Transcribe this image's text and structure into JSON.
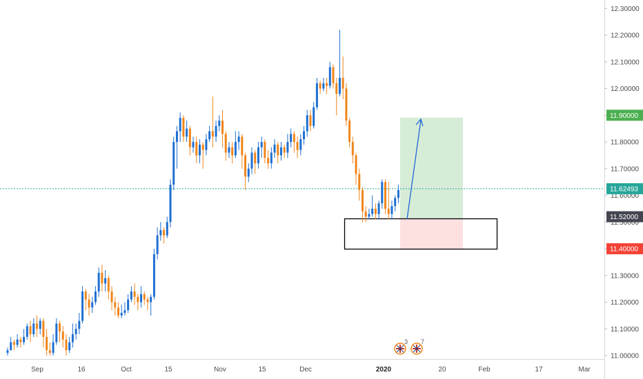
{
  "chart_data": {
    "type": "candlestick",
    "x_ticks": [
      "Sep",
      "16",
      "Oct",
      "15",
      "Nov",
      "15",
      "Dec",
      "2020",
      "20",
      "Feb",
      "17",
      "Mar"
    ],
    "y_ticks": [
      "12.30000",
      "12.20000",
      "12.10000",
      "12.00000",
      "11.90000",
      "11.80000",
      "11.70000",
      "11.60000",
      "11.50000",
      "11.40000",
      "11.30000",
      "11.20000",
      "11.10000",
      "11.00000"
    ],
    "ylim": [
      11.0,
      12.3
    ],
    "current_price": {
      "value": 11.62493,
      "label": "11.62493",
      "color": "#26a69a"
    },
    "price_badges": [
      {
        "label": "11.90000",
        "value": 11.9,
        "color": "#4caf50"
      },
      {
        "label": "11.52000",
        "value": 11.52,
        "color": "#434651"
      },
      {
        "label": "11.40000",
        "value": 11.4,
        "color": "#f44336"
      }
    ],
    "colors": {
      "up": "#1e6fd1",
      "down": "#f0851a",
      "profit_zone": "#d6ecd7",
      "loss_zone": "#fde1e1",
      "arrow": "#2166d6",
      "grid": "#ffffff"
    },
    "candles": [
      [
        11.01,
        11.02,
        11.0,
        11.03
      ],
      [
        11.02,
        11.05,
        11.02,
        11.07
      ],
      [
        11.05,
        11.04,
        11.02,
        11.06
      ],
      [
        11.04,
        11.06,
        11.03,
        11.08
      ],
      [
        11.06,
        11.05,
        11.03,
        11.07
      ],
      [
        11.05,
        11.07,
        11.04,
        11.1
      ],
      [
        11.07,
        11.11,
        11.06,
        11.12
      ],
      [
        11.11,
        11.08,
        11.05,
        11.13
      ],
      [
        11.08,
        11.12,
        11.07,
        11.14
      ],
      [
        11.12,
        11.1,
        11.07,
        11.15
      ],
      [
        11.1,
        11.13,
        11.08,
        11.14
      ],
      [
        11.13,
        11.07,
        11.03,
        11.14
      ],
      [
        11.07,
        11.02,
        11.0,
        11.1
      ],
      [
        11.02,
        11.01,
        11.0,
        11.05
      ],
      [
        11.01,
        11.05,
        11.0,
        11.08
      ],
      [
        11.05,
        11.12,
        11.04,
        11.14
      ],
      [
        11.12,
        11.09,
        11.05,
        11.13
      ],
      [
        11.09,
        11.06,
        11.03,
        11.11
      ],
      [
        11.06,
        11.02,
        11.0,
        11.08
      ],
      [
        11.02,
        11.05,
        11.01,
        11.07
      ],
      [
        11.05,
        11.08,
        11.03,
        11.12
      ],
      [
        11.08,
        11.1,
        11.06,
        11.12
      ],
      [
        11.1,
        11.13,
        11.08,
        11.16
      ],
      [
        11.13,
        11.24,
        11.12,
        11.26
      ],
      [
        11.24,
        11.21,
        11.17,
        11.25
      ],
      [
        11.21,
        11.18,
        11.15,
        11.23
      ],
      [
        11.18,
        11.2,
        11.16,
        11.22
      ],
      [
        11.2,
        11.24,
        11.19,
        11.26
      ],
      [
        11.24,
        11.31,
        11.22,
        11.33
      ],
      [
        11.31,
        11.27,
        11.24,
        11.34
      ],
      [
        11.27,
        11.29,
        11.24,
        11.32
      ],
      [
        11.29,
        11.24,
        11.21,
        11.3
      ],
      [
        11.24,
        11.2,
        11.17,
        11.26
      ],
      [
        11.2,
        11.18,
        11.15,
        11.22
      ],
      [
        11.18,
        11.15,
        11.14,
        11.2
      ],
      [
        11.15,
        11.16,
        11.14,
        11.19
      ],
      [
        11.16,
        11.17,
        11.15,
        11.2
      ],
      [
        11.17,
        11.21,
        11.16,
        11.23
      ],
      [
        11.21,
        11.24,
        11.2,
        11.26
      ],
      [
        11.24,
        11.22,
        11.19,
        11.27
      ],
      [
        11.22,
        11.2,
        11.17,
        11.23
      ],
      [
        11.2,
        11.23,
        11.18,
        11.26
      ],
      [
        11.23,
        11.21,
        11.19,
        11.24
      ],
      [
        11.21,
        11.2,
        11.17,
        11.22
      ],
      [
        11.2,
        11.22,
        11.15,
        11.23
      ],
      [
        11.22,
        11.38,
        11.21,
        11.4
      ],
      [
        11.38,
        11.45,
        11.36,
        11.48
      ],
      [
        11.45,
        11.47,
        11.43,
        11.5
      ],
      [
        11.47,
        11.45,
        11.42,
        11.48
      ],
      [
        11.45,
        11.5,
        11.44,
        11.52
      ],
      [
        11.5,
        11.64,
        11.48,
        11.66
      ],
      [
        11.64,
        11.8,
        11.62,
        11.82
      ],
      [
        11.8,
        11.84,
        11.7,
        11.86
      ],
      [
        11.84,
        11.89,
        11.8,
        11.91
      ],
      [
        11.89,
        11.82,
        11.8,
        11.9
      ],
      [
        11.82,
        11.85,
        11.8,
        11.88
      ],
      [
        11.85,
        11.78,
        11.75,
        11.86
      ],
      [
        11.78,
        11.8,
        11.76,
        11.82
      ],
      [
        11.8,
        11.75,
        11.72,
        11.82
      ],
      [
        11.75,
        11.79,
        11.72,
        11.81
      ],
      [
        11.79,
        11.77,
        11.7,
        11.8
      ],
      [
        11.77,
        11.81,
        11.75,
        11.83
      ],
      [
        11.81,
        11.84,
        11.8,
        11.86
      ],
      [
        11.84,
        11.82,
        11.78,
        11.97
      ],
      [
        11.82,
        11.86,
        11.8,
        11.88
      ],
      [
        11.86,
        11.88,
        11.84,
        11.9
      ],
      [
        11.88,
        11.83,
        11.78,
        11.92
      ],
      [
        11.83,
        11.76,
        11.73,
        11.84
      ],
      [
        11.76,
        11.78,
        11.74,
        11.8
      ],
      [
        11.78,
        11.75,
        11.72,
        11.8
      ],
      [
        11.75,
        11.8,
        11.74,
        11.84
      ],
      [
        11.8,
        11.82,
        11.77,
        11.84
      ],
      [
        11.82,
        11.75,
        11.7,
        11.83
      ],
      [
        11.75,
        11.67,
        11.62,
        11.76
      ],
      [
        11.67,
        11.7,
        11.65,
        11.72
      ],
      [
        11.7,
        11.76,
        11.68,
        11.78
      ],
      [
        11.76,
        11.72,
        11.68,
        11.77
      ],
      [
        11.72,
        11.78,
        11.7,
        11.8
      ],
      [
        11.78,
        11.8,
        11.74,
        11.82
      ],
      [
        11.8,
        11.74,
        11.72,
        11.81
      ],
      [
        11.74,
        11.72,
        11.7,
        11.77
      ],
      [
        11.72,
        11.76,
        11.7,
        11.78
      ],
      [
        11.76,
        11.79,
        11.74,
        11.81
      ],
      [
        11.79,
        11.75,
        11.72,
        11.8
      ],
      [
        11.75,
        11.78,
        11.73,
        11.8
      ],
      [
        11.78,
        11.76,
        11.74,
        11.79
      ],
      [
        11.76,
        11.8,
        11.74,
        11.83
      ],
      [
        11.8,
        11.83,
        11.78,
        11.85
      ],
      [
        11.83,
        11.8,
        11.76,
        11.84
      ],
      [
        11.8,
        11.77,
        11.74,
        11.82
      ],
      [
        11.77,
        11.81,
        11.75,
        11.83
      ],
      [
        11.81,
        11.84,
        11.79,
        11.86
      ],
      [
        11.84,
        11.9,
        11.82,
        11.92
      ],
      [
        11.9,
        11.86,
        11.84,
        11.92
      ],
      [
        11.86,
        11.93,
        11.85,
        11.95
      ],
      [
        11.93,
        12.02,
        11.92,
        12.04
      ],
      [
        12.02,
        12.0,
        11.98,
        12.03
      ],
      [
        12.0,
        12.02,
        11.99,
        12.04
      ],
      [
        12.02,
        12.01,
        11.98,
        12.04
      ],
      [
        12.01,
        12.08,
        12.0,
        12.1
      ],
      [
        12.08,
        12.02,
        12.0,
        12.09
      ],
      [
        12.02,
        11.98,
        11.9,
        12.04
      ],
      [
        11.98,
        12.04,
        11.97,
        12.22
      ],
      [
        12.04,
        12.0,
        11.96,
        12.12
      ],
      [
        12.0,
        11.88,
        11.86,
        12.02
      ],
      [
        11.88,
        11.8,
        11.78,
        11.89
      ],
      [
        11.8,
        11.75,
        11.72,
        11.82
      ],
      [
        11.75,
        11.68,
        11.64,
        11.76
      ],
      [
        11.68,
        11.62,
        11.58,
        11.7
      ],
      [
        11.62,
        11.54,
        11.5,
        11.63
      ],
      [
        11.54,
        11.52,
        11.5,
        11.56
      ],
      [
        11.52,
        11.53,
        11.51,
        11.55
      ],
      [
        11.53,
        11.55,
        11.52,
        11.6
      ],
      [
        11.55,
        11.53,
        11.51,
        11.57
      ],
      [
        11.53,
        11.57,
        11.51,
        11.58
      ],
      [
        11.57,
        11.65,
        11.55,
        11.66
      ],
      [
        11.65,
        11.55,
        11.53,
        11.66
      ],
      [
        11.55,
        11.53,
        11.51,
        11.65
      ],
      [
        11.53,
        11.56,
        11.51,
        11.58
      ],
      [
        11.56,
        11.59,
        11.54,
        11.6
      ],
      [
        11.59,
        11.62,
        11.57,
        11.64
      ]
    ]
  },
  "events": [
    {
      "count": "3"
    },
    {
      "count": "7"
    }
  ],
  "icons": {
    "flag_icon": "uk-flag-icon",
    "arrow": "target-arrow-icon"
  }
}
